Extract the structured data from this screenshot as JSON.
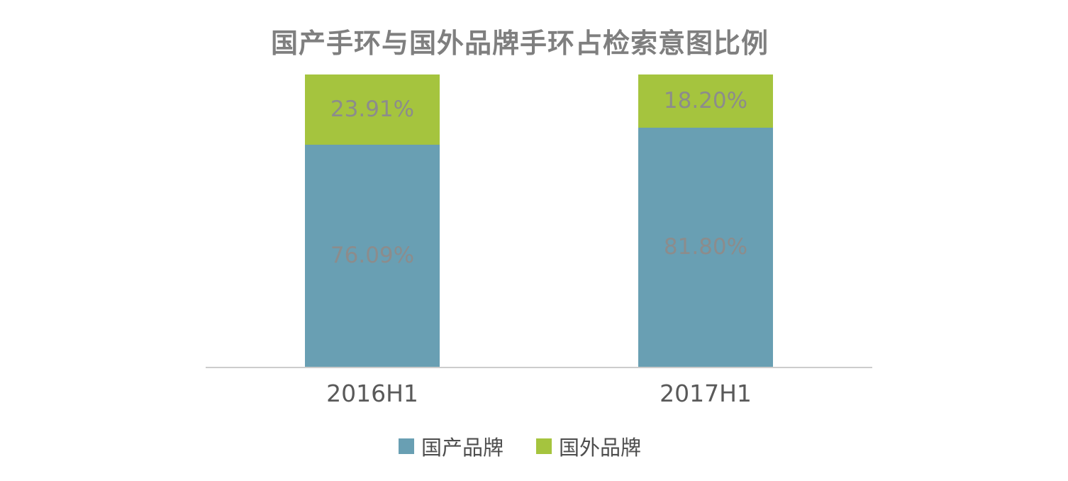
{
  "chart_data": {
    "type": "bar",
    "stacked": true,
    "title": "国产手环与国外品牌手环占检索意图比例",
    "categories": [
      "2016H1",
      "2017H1"
    ],
    "ylim": [
      0,
      100
    ],
    "grid": false,
    "legend_position": "bottom",
    "series": [
      {
        "name": "国产品牌",
        "color": "#699fb3",
        "values": [
          76.09,
          81.8
        ],
        "labels": [
          "76.09%",
          "81.80%"
        ]
      },
      {
        "name": "国外品牌",
        "color": "#a5c43e",
        "values": [
          23.91,
          18.2
        ],
        "labels": [
          "23.91%",
          "18.20%"
        ]
      }
    ]
  }
}
